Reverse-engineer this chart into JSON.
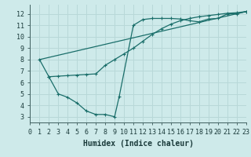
{
  "xlabel": "Humidex (Indice chaleur)",
  "bg_color": "#ceeaea",
  "line_color": "#1a6e6a",
  "grid_color": "#b8d8d8",
  "xlim": [
    0,
    23
  ],
  "ylim": [
    2.5,
    12.8
  ],
  "xticks": [
    0,
    1,
    2,
    3,
    4,
    5,
    6,
    7,
    8,
    9,
    10,
    11,
    12,
    13,
    14,
    15,
    16,
    17,
    18,
    19,
    20,
    21,
    22,
    23
  ],
  "yticks": [
    3,
    4,
    5,
    6,
    7,
    8,
    9,
    10,
    11,
    12
  ],
  "line1_x": [
    1,
    2,
    3,
    4,
    5,
    6,
    7,
    8,
    9,
    9.5,
    11,
    12,
    13,
    14,
    15,
    16,
    17,
    18,
    19,
    20,
    21,
    22,
    23
  ],
  "line1_y": [
    8.0,
    6.5,
    5.0,
    4.7,
    4.2,
    3.5,
    3.2,
    3.2,
    3.0,
    4.8,
    11.0,
    11.5,
    11.6,
    11.6,
    11.6,
    11.55,
    11.4,
    11.3,
    11.55,
    11.6,
    12.0,
    12.0,
    12.2
  ],
  "line2_x": [
    1,
    23
  ],
  "line2_y": [
    8.0,
    12.2
  ],
  "line3_x": [
    2,
    3,
    4,
    5,
    6,
    7,
    8,
    9,
    10,
    11,
    12,
    13,
    14,
    15,
    16,
    17,
    18,
    19,
    20,
    21,
    22,
    23
  ],
  "line3_y": [
    6.5,
    6.55,
    6.6,
    6.65,
    6.7,
    6.75,
    7.5,
    8.0,
    8.5,
    9.0,
    9.6,
    10.2,
    10.7,
    11.1,
    11.4,
    11.6,
    11.75,
    11.85,
    11.95,
    12.05,
    12.1,
    12.2
  ],
  "xlabel_fontsize": 7,
  "tick_fontsize": 6
}
